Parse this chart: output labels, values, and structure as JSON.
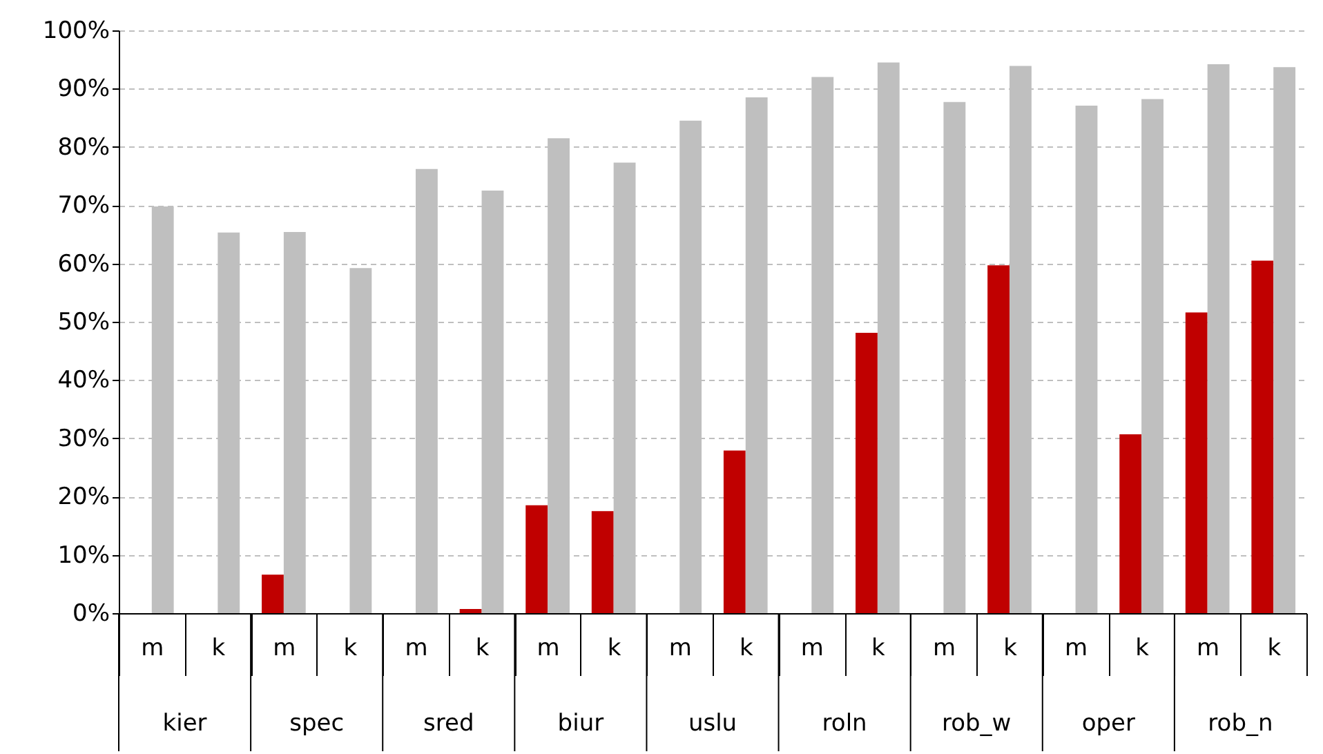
{
  "chart_data": {
    "type": "bar",
    "categories": [
      "m",
      "k",
      "m",
      "k",
      "m",
      "k",
      "m",
      "k",
      "m",
      "k",
      "m",
      "k",
      "m",
      "k",
      "m",
      "k",
      "m",
      "k"
    ],
    "series": [
      {
        "color": "#c00000",
        "values": [
          null,
          null,
          6.6,
          null,
          null,
          0.7,
          18.5,
          17.5,
          null,
          27.9,
          null,
          48.1,
          null,
          59.7,
          null,
          30.7,
          51.6,
          60.5
        ]
      },
      {
        "color": "#bfbfbf",
        "values": [
          69.8,
          65.3,
          65.4,
          59.2,
          76.2,
          72.5,
          81.5,
          77.3,
          84.5,
          88.5,
          92,
          94.5,
          87.7,
          93.9,
          87.1,
          88.2,
          94.2,
          93.7
        ]
      }
    ],
    "annotations": [
      "kier",
      "spec",
      "sred",
      "biur",
      "uslu",
      "roln",
      "rob_w",
      "oper",
      "rob_n"
    ],
    "ylim": [
      0,
      100
    ],
    "yticks": [
      {
        "value": 0,
        "label": "0%"
      },
      {
        "value": 10,
        "label": "10%"
      },
      {
        "value": 20,
        "label": "20%"
      },
      {
        "value": 30,
        "label": "30%"
      },
      {
        "value": 40,
        "label": "40%"
      },
      {
        "value": 50,
        "label": "50%"
      },
      {
        "value": 60,
        "label": "60%"
      },
      {
        "value": 70,
        "label": "70%"
      },
      {
        "value": 80,
        "label": "80%"
      },
      {
        "value": 90,
        "label": "90%"
      },
      {
        "value": 100,
        "label": "100%"
      }
    ],
    "grid": "y",
    "legend": false
  }
}
